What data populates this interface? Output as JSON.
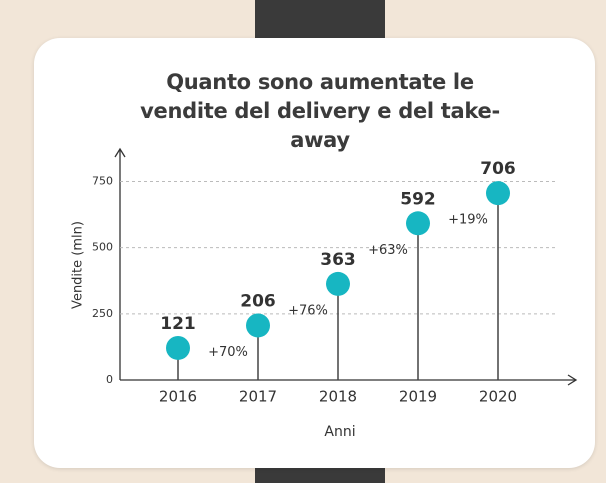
{
  "chart_data": {
    "type": "lollipop",
    "title": "Quanto sono aumentate le vendite del delivery e del take-away",
    "x_label": "Anni",
    "y_label": "Vendite (mln)",
    "categories": [
      "2016",
      "2017",
      "2018",
      "2019",
      "2020"
    ],
    "values": [
      121,
      206,
      363,
      592,
      706
    ],
    "change_labels": [
      null,
      "+70%",
      "+76%",
      "+63%",
      "+19%"
    ],
    "color": "#17b6c2",
    "ylim": [
      0,
      850
    ],
    "yticks": [
      0,
      250,
      500,
      750
    ],
    "grid": true
  }
}
